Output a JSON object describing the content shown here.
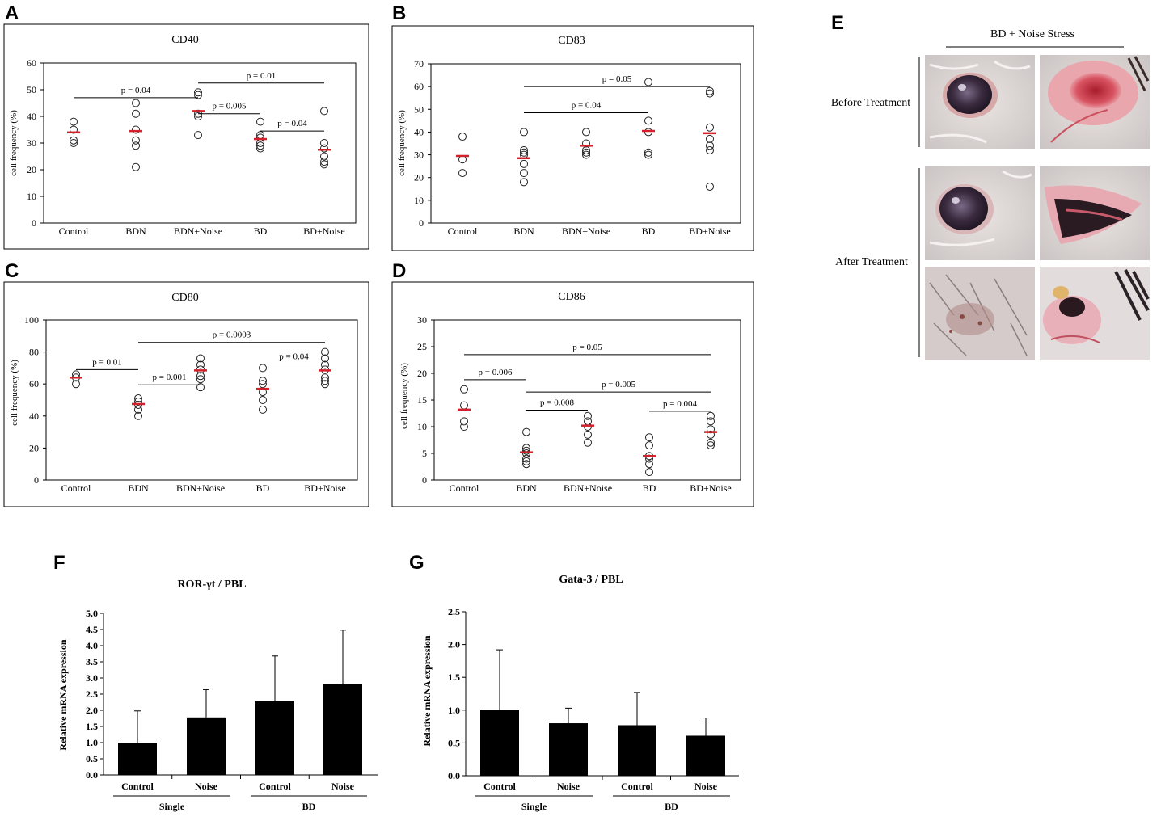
{
  "panel_labels": {
    "A": "A",
    "B": "B",
    "C": "C",
    "D": "D",
    "E": "E",
    "F": "F",
    "G": "G"
  },
  "colors": {
    "mean": "#d4202a",
    "bar": "#000000",
    "axis": "#000000",
    "point": "#222222"
  },
  "photo_panel": {
    "header": "BD + Noise Stress",
    "before_label": "Before Treatment",
    "after_label": "After Treatment",
    "photos": [
      "eye-before",
      "mouth-before",
      "eye-after",
      "mouth-after",
      "skin-after",
      "genital-after"
    ]
  },
  "chart_data": [
    {
      "id": "A",
      "type": "scatter",
      "title": "CD40",
      "ylabel": "cell frequency  (%)",
      "ylim": [
        0,
        60
      ],
      "yticks": [
        0,
        10,
        20,
        30,
        40,
        50,
        60
      ],
      "categories": [
        "Control",
        "BDN",
        "BDN+Noise",
        "BD",
        "BD+Noise"
      ],
      "points": [
        [
          30,
          31,
          35,
          38
        ],
        [
          21,
          29,
          31,
          35,
          41,
          45
        ],
        [
          33,
          40,
          41,
          48,
          49
        ],
        [
          28,
          29,
          30,
          32,
          33,
          38
        ],
        [
          22,
          23,
          25,
          28,
          30,
          42
        ]
      ],
      "means": [
        34,
        34.5,
        42,
        31.5,
        27.5
      ],
      "brackets": [
        {
          "from": 0,
          "to": 2,
          "y": 47,
          "label": "p = 0.04"
        },
        {
          "from": 2,
          "to": 4,
          "y": 52.5,
          "label": "p = 0.01"
        },
        {
          "from": 2,
          "to": 3,
          "y": 41,
          "label": "p = 0.005"
        },
        {
          "from": 3,
          "to": 4,
          "y": 34.5,
          "label": "p = 0.04"
        }
      ]
    },
    {
      "id": "B",
      "type": "scatter",
      "title": "CD83",
      "ylabel": "cell frequency  (%)",
      "ylim": [
        0,
        70
      ],
      "yticks": [
        0,
        10,
        20,
        30,
        40,
        50,
        60,
        70
      ],
      "categories": [
        "Control",
        "BDN",
        "BDN+Noise",
        "BD",
        "BD+Noise"
      ],
      "points": [
        [
          22,
          28,
          38
        ],
        [
          18,
          22,
          26,
          30,
          31,
          32,
          40
        ],
        [
          30,
          31,
          32,
          35,
          40
        ],
        [
          30,
          31,
          40,
          45,
          62
        ],
        [
          16,
          32,
          34,
          37,
          42,
          57,
          58
        ]
      ],
      "means": [
        29.5,
        28.5,
        34,
        40.5,
        39.5
      ],
      "brackets": [
        {
          "from": 1,
          "to": 4,
          "y": 60,
          "label": "p = 0.05"
        },
        {
          "from": 1,
          "to": 3,
          "y": 48.5,
          "label": "p = 0.04"
        }
      ]
    },
    {
      "id": "C",
      "type": "scatter",
      "title": "CD80",
      "ylabel": "cell frequency  (%)",
      "ylim": [
        0,
        100
      ],
      "yticks": [
        0,
        20,
        40,
        60,
        80,
        100
      ],
      "categories": [
        "Control",
        "BDN",
        "BDN+Noise",
        "BD",
        "BD+Noise"
      ],
      "points": [
        [
          60,
          64,
          66
        ],
        [
          40,
          44,
          47,
          49,
          51
        ],
        [
          58,
          63,
          65,
          69,
          72,
          76
        ],
        [
          44,
          50,
          55,
          60,
          62,
          70
        ],
        [
          60,
          62,
          64,
          69,
          72,
          76,
          80
        ]
      ],
      "means": [
        64,
        47.5,
        68.5,
        57,
        68.5
      ],
      "brackets": [
        {
          "from": 0,
          "to": 1,
          "y": 69,
          "label": "p = 0.01"
        },
        {
          "from": 1,
          "to": 4,
          "y": 86,
          "label": "p = 0.0003"
        },
        {
          "from": 1,
          "to": 2,
          "y": 59.5,
          "label": "p = 0.001"
        },
        {
          "from": 3,
          "to": 4,
          "y": 72.5,
          "label": "p = 0.04"
        }
      ]
    },
    {
      "id": "D",
      "type": "scatter",
      "title": "CD86",
      "ylabel": "cell frequency  (%)",
      "ylim": [
        0,
        30
      ],
      "yticks": [
        0,
        5,
        10,
        15,
        20,
        25,
        30
      ],
      "categories": [
        "Control",
        "BDN",
        "BDN+Noise",
        "BD",
        "BD+Noise"
      ],
      "points": [
        [
          10,
          11,
          14,
          17
        ],
        [
          3,
          3.5,
          4,
          5,
          5.5,
          6,
          9
        ],
        [
          7,
          8.5,
          10,
          11,
          12
        ],
        [
          1.5,
          3,
          4,
          4.5,
          6.5,
          8
        ],
        [
          6.5,
          7,
          8.5,
          9.5,
          11,
          12
        ]
      ],
      "means": [
        13.2,
        5.2,
        10.2,
        4.5,
        9
      ],
      "brackets": [
        {
          "from": 0,
          "to": 4,
          "y": 23.5,
          "label": "p = 0.05"
        },
        {
          "from": 0,
          "to": 1,
          "y": 18.8,
          "label": "p = 0.006"
        },
        {
          "from": 1,
          "to": 4,
          "y": 16.5,
          "label": "p = 0.005"
        },
        {
          "from": 1,
          "to": 2,
          "y": 13.1,
          "label": "p = 0.008"
        },
        {
          "from": 3,
          "to": 4,
          "y": 12.9,
          "label": "p = 0.004"
        }
      ]
    },
    {
      "id": "F",
      "type": "bar",
      "title": "ROR-γt / PBL",
      "ylabel": "Relative mRNA expression",
      "ylim": [
        0,
        5
      ],
      "yticks": [
        "0.0",
        "0.5",
        "1.0",
        "1.5",
        "2.0",
        "2.5",
        "3.0",
        "3.5",
        "4.0",
        "4.5",
        "5.0"
      ],
      "categories": [
        "Control",
        "Noise",
        "Control",
        "Noise"
      ],
      "values": [
        1.0,
        1.78,
        2.3,
        2.8
      ],
      "errors": [
        0.98,
        0.86,
        1.38,
        1.68
      ],
      "groups": [
        {
          "label": "Single",
          "from": 0,
          "to": 1
        },
        {
          "label": "BD",
          "from": 2,
          "to": 3
        }
      ]
    },
    {
      "id": "G",
      "type": "bar",
      "title": "Gata-3 / PBL",
      "ylabel": "Relative mRNA expression",
      "ylim": [
        0,
        2.5
      ],
      "yticks": [
        "0.0",
        "0.5",
        "1.0",
        "1.5",
        "2.0",
        "2.5"
      ],
      "categories": [
        "Control",
        "Noise",
        "Control",
        "Noise"
      ],
      "values": [
        1.0,
        0.8,
        0.77,
        0.61
      ],
      "errors": [
        0.92,
        0.23,
        0.5,
        0.27
      ],
      "groups": [
        {
          "label": "Single",
          "from": 0,
          "to": 1
        },
        {
          "label": "BD",
          "from": 2,
          "to": 3
        }
      ]
    }
  ]
}
